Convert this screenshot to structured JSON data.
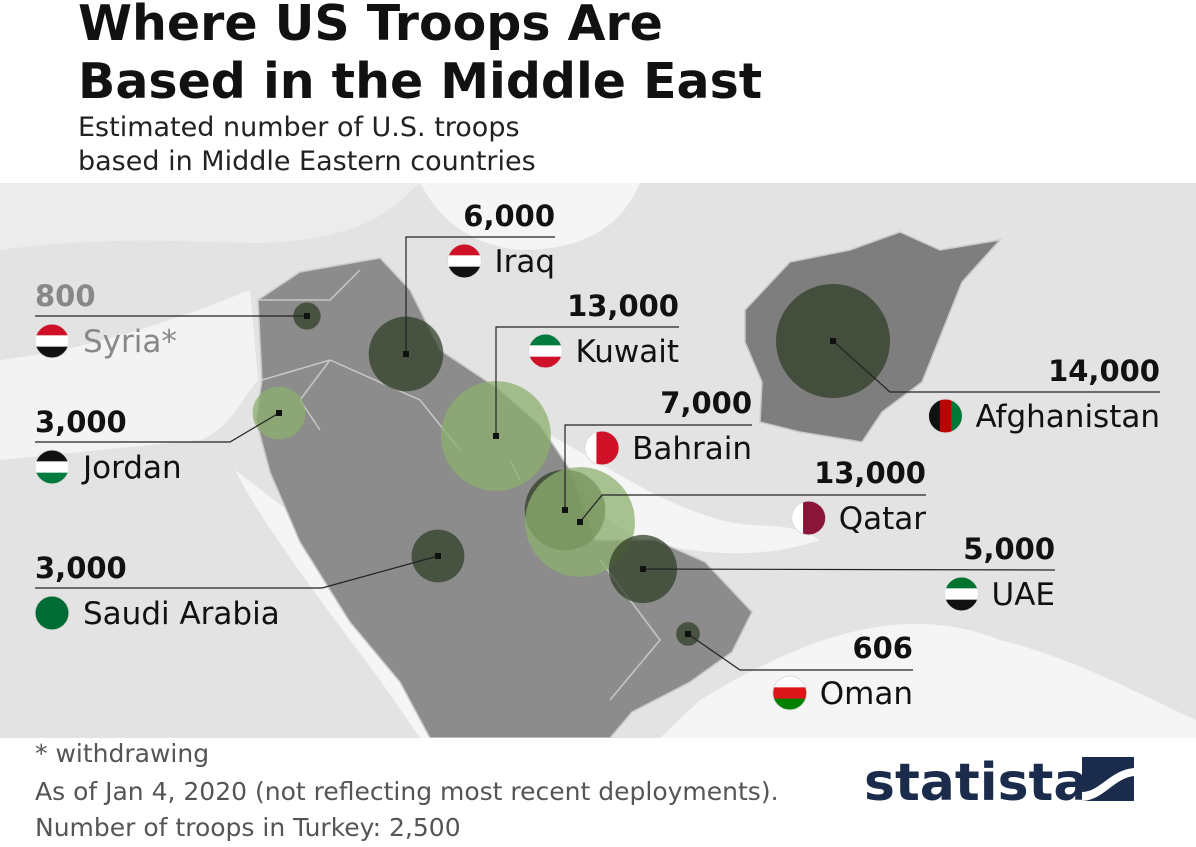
{
  "header": {
    "title_lines": [
      "Where US Troops Are",
      "Based in the Middle East"
    ],
    "subtitle_lines": [
      "Estimated number of U.S. troops",
      "based in Middle Eastern countries"
    ]
  },
  "map": {
    "countries": [
      {
        "name": "Iraq",
        "troops": 6000,
        "troops_label": "6,000"
      },
      {
        "name": "Syria*",
        "troops": 800,
        "troops_label": "800"
      },
      {
        "name": "Kuwait",
        "troops": 13000,
        "troops_label": "13,000"
      },
      {
        "name": "Jordan",
        "troops": 3000,
        "troops_label": "3,000"
      },
      {
        "name": "Bahrain",
        "troops": 7000,
        "troops_label": "7,000"
      },
      {
        "name": "Qatar",
        "troops": 13000,
        "troops_label": "13,000"
      },
      {
        "name": "Saudi Arabia",
        "troops": 3000,
        "troops_label": "3,000"
      },
      {
        "name": "UAE",
        "troops": 5000,
        "troops_label": "5,000"
      },
      {
        "name": "Oman",
        "troops": 606,
        "troops_label": "606"
      },
      {
        "name": "Afghanistan",
        "troops": 14000,
        "troops_label": "14,000"
      }
    ]
  },
  "footer": {
    "notes": [
      "* withdrawing",
      "As of Jan 4, 2020 (not reflecting most recent deployments).",
      "Number of troops in Turkey: 2,500"
    ],
    "brand": "statista"
  }
}
